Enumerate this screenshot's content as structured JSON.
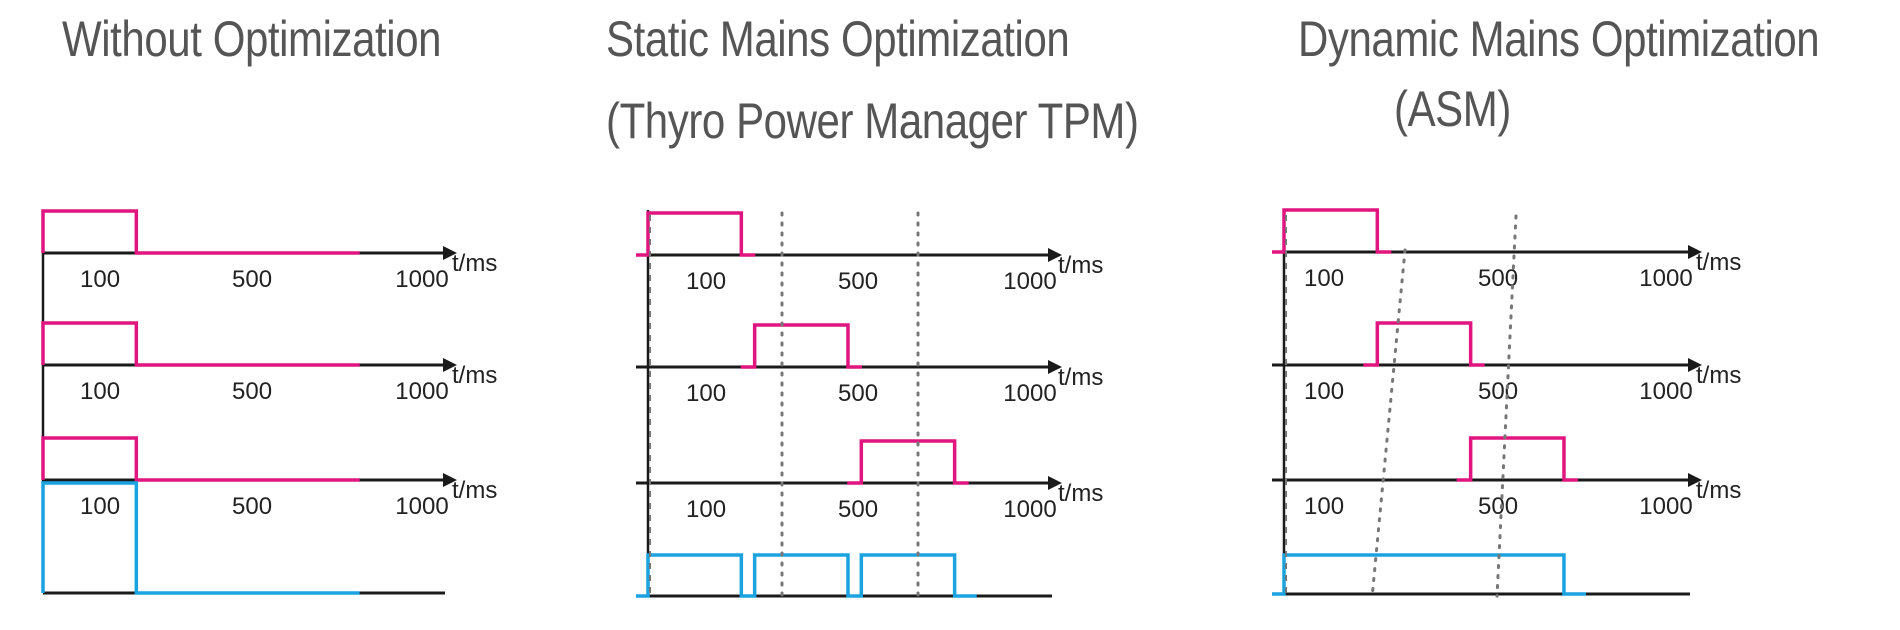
{
  "colors": {
    "pulse": "#e0157f",
    "total": "#1aa3e0",
    "axis": "#1a1a1a",
    "title": "#555555",
    "marker": "#777777"
  },
  "axis_unit": "t/ms",
  "tick_labels": [
    "100",
    "500",
    "1000"
  ],
  "panels": [
    {
      "title_lines": [
        "Without Optimization"
      ],
      "channels": [
        {
          "on": [
            0,
            280
          ]
        },
        {
          "on": [
            0,
            280
          ]
        },
        {
          "on": [
            0,
            280
          ]
        }
      ],
      "total": {
        "segments": [
          [
            0,
            280
          ]
        ]
      },
      "markers": []
    },
    {
      "title_lines": [
        "Static Mains Optimization",
        "(Thyro Power Manager TPM)"
      ],
      "channels": [
        {
          "on": [
            0,
            280
          ]
        },
        {
          "on": [
            320,
            600
          ]
        },
        {
          "on": [
            640,
            920
          ]
        }
      ],
      "total": {
        "segments": [
          [
            0,
            280
          ],
          [
            320,
            600
          ],
          [
            640,
            920
          ]
        ]
      },
      "markers": [
        "dotted-line-1",
        "dotted-line-2"
      ]
    },
    {
      "title_lines": [
        "Dynamic Mains Optimization",
        "(ASM)"
      ],
      "channels": [
        {
          "on": [
            0,
            280
          ]
        },
        {
          "on": [
            280,
            560
          ]
        },
        {
          "on": [
            560,
            840
          ]
        }
      ],
      "total": {
        "segments": [
          [
            0,
            840
          ]
        ]
      },
      "markers": [
        "dotted-line-1",
        "dotted-line-2"
      ]
    }
  ]
}
